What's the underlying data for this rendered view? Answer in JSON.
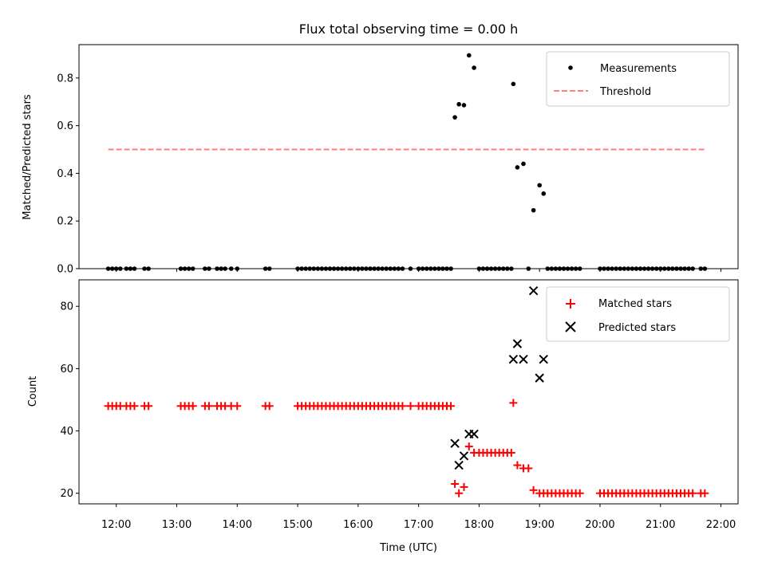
{
  "title": "Flux total observing time = 0.00 h",
  "colors": {
    "measurement": "#000000",
    "threshold": "#ff7f7f",
    "matched": "#ff0000",
    "predicted": "#000000"
  },
  "chart_data": [
    {
      "type": "scatter",
      "ylabel": "Matched/Predicted stars",
      "xlim": [
        "11:23",
        "22:17"
      ],
      "ylim": [
        0,
        0.94
      ],
      "yticks": [
        "0.0",
        "0.2",
        "0.4",
        "0.6",
        "0.8"
      ],
      "legend_position": "top-right",
      "series": [
        {
          "name": "Measurements",
          "marker": "dot",
          "points": [
            [
              "11:52",
              0
            ],
            [
              "11:56",
              0
            ],
            [
              "12:00",
              0
            ],
            [
              "12:04",
              0
            ],
            [
              "12:10",
              0
            ],
            [
              "12:14",
              0
            ],
            [
              "12:18",
              0
            ],
            [
              "12:28",
              0
            ],
            [
              "12:32",
              0
            ],
            [
              "13:04",
              0
            ],
            [
              "13:08",
              0
            ],
            [
              "13:12",
              0
            ],
            [
              "13:16",
              0
            ],
            [
              "13:28",
              0
            ],
            [
              "13:32",
              0
            ],
            [
              "13:40",
              0
            ],
            [
              "13:44",
              0
            ],
            [
              "13:48",
              0
            ],
            [
              "13:54",
              0
            ],
            [
              "14:00",
              0
            ],
            [
              "14:28",
              0
            ],
            [
              "14:32",
              0
            ],
            [
              "15:00",
              0
            ],
            [
              "15:04",
              0
            ],
            [
              "15:08",
              0
            ],
            [
              "15:12",
              0
            ],
            [
              "15:16",
              0
            ],
            [
              "15:20",
              0
            ],
            [
              "15:24",
              0
            ],
            [
              "15:28",
              0
            ],
            [
              "15:32",
              0
            ],
            [
              "15:36",
              0
            ],
            [
              "15:40",
              0
            ],
            [
              "15:44",
              0
            ],
            [
              "15:48",
              0
            ],
            [
              "15:52",
              0
            ],
            [
              "15:56",
              0
            ],
            [
              "16:00",
              0
            ],
            [
              "16:04",
              0
            ],
            [
              "16:08",
              0
            ],
            [
              "16:12",
              0
            ],
            [
              "16:16",
              0
            ],
            [
              "16:20",
              0
            ],
            [
              "16:24",
              0
            ],
            [
              "16:28",
              0
            ],
            [
              "16:32",
              0
            ],
            [
              "16:36",
              0
            ],
            [
              "16:40",
              0
            ],
            [
              "16:44",
              0
            ],
            [
              "16:52",
              0
            ],
            [
              "17:00",
              0
            ],
            [
              "17:04",
              0
            ],
            [
              "17:08",
              0
            ],
            [
              "17:12",
              0
            ],
            [
              "17:16",
              0
            ],
            [
              "17:20",
              0
            ],
            [
              "17:24",
              0
            ],
            [
              "17:28",
              0
            ],
            [
              "17:32",
              0
            ],
            [
              "17:36",
              0.635
            ],
            [
              "17:40",
              0.69
            ],
            [
              "17:45",
              0.686
            ],
            [
              "17:50",
              0.895
            ],
            [
              "17:55",
              0.843
            ],
            [
              "18:00",
              0
            ],
            [
              "18:04",
              0
            ],
            [
              "18:08",
              0
            ],
            [
              "18:12",
              0
            ],
            [
              "18:16",
              0
            ],
            [
              "18:20",
              0
            ],
            [
              "18:24",
              0
            ],
            [
              "18:28",
              0
            ],
            [
              "18:32",
              0
            ],
            [
              "18:34",
              0.775
            ],
            [
              "18:38",
              0.425
            ],
            [
              "18:44",
              0.44
            ],
            [
              "18:49",
              0
            ],
            [
              "18:54",
              0.245
            ],
            [
              "19:00",
              0.35
            ],
            [
              "19:04",
              0.315
            ],
            [
              "19:08",
              0
            ],
            [
              "19:12",
              0
            ],
            [
              "19:16",
              0
            ],
            [
              "19:20",
              0
            ],
            [
              "19:24",
              0
            ],
            [
              "19:28",
              0
            ],
            [
              "19:32",
              0
            ],
            [
              "19:36",
              0
            ],
            [
              "19:40",
              0
            ],
            [
              "20:00",
              0
            ],
            [
              "20:04",
              0
            ],
            [
              "20:08",
              0
            ],
            [
              "20:12",
              0
            ],
            [
              "20:16",
              0
            ],
            [
              "20:20",
              0
            ],
            [
              "20:24",
              0
            ],
            [
              "20:28",
              0
            ],
            [
              "20:32",
              0
            ],
            [
              "20:36",
              0
            ],
            [
              "20:40",
              0
            ],
            [
              "20:44",
              0
            ],
            [
              "20:48",
              0
            ],
            [
              "20:52",
              0
            ],
            [
              "20:56",
              0
            ],
            [
              "21:00",
              0
            ],
            [
              "21:04",
              0
            ],
            [
              "21:08",
              0
            ],
            [
              "21:12",
              0
            ],
            [
              "21:16",
              0
            ],
            [
              "21:20",
              0
            ],
            [
              "21:24",
              0
            ],
            [
              "21:28",
              0
            ],
            [
              "21:32",
              0
            ],
            [
              "21:40",
              0
            ],
            [
              "21:44",
              0
            ]
          ]
        },
        {
          "name": "Threshold",
          "style": "dashed-line",
          "points": [
            [
              "11:52",
              0.5
            ],
            [
              "21:44",
              0.5
            ]
          ]
        }
      ]
    },
    {
      "type": "scatter",
      "xlabel": "Time (UTC)",
      "ylabel": "Count",
      "xlim": [
        "11:23",
        "22:17"
      ],
      "ylim": [
        16.6,
        88.5
      ],
      "yticks": [
        "20",
        "40",
        "60",
        "80"
      ],
      "xticks": [
        "12:00",
        "13:00",
        "14:00",
        "15:00",
        "16:00",
        "17:00",
        "18:00",
        "19:00",
        "20:00",
        "21:00",
        "22:00"
      ],
      "legend_position": "top-right",
      "series": [
        {
          "name": "Matched stars",
          "marker": "plus",
          "points": [
            [
              "11:52",
              48
            ],
            [
              "11:56",
              48
            ],
            [
              "12:00",
              48
            ],
            [
              "12:04",
              48
            ],
            [
              "12:10",
              48
            ],
            [
              "12:14",
              48
            ],
            [
              "12:18",
              48
            ],
            [
              "12:28",
              48
            ],
            [
              "12:32",
              48
            ],
            [
              "13:04",
              48
            ],
            [
              "13:08",
              48
            ],
            [
              "13:12",
              48
            ],
            [
              "13:16",
              48
            ],
            [
              "13:28",
              48
            ],
            [
              "13:32",
              48
            ],
            [
              "13:40",
              48
            ],
            [
              "13:44",
              48
            ],
            [
              "13:48",
              48
            ],
            [
              "13:54",
              48
            ],
            [
              "14:00",
              48
            ],
            [
              "14:28",
              48
            ],
            [
              "14:32",
              48
            ],
            [
              "15:00",
              48
            ],
            [
              "15:04",
              48
            ],
            [
              "15:08",
              48
            ],
            [
              "15:12",
              48
            ],
            [
              "15:16",
              48
            ],
            [
              "15:20",
              48
            ],
            [
              "15:24",
              48
            ],
            [
              "15:28",
              48
            ],
            [
              "15:32",
              48
            ],
            [
              "15:36",
              48
            ],
            [
              "15:40",
              48
            ],
            [
              "15:44",
              48
            ],
            [
              "15:48",
              48
            ],
            [
              "15:52",
              48
            ],
            [
              "15:56",
              48
            ],
            [
              "16:00",
              48
            ],
            [
              "16:04",
              48
            ],
            [
              "16:08",
              48
            ],
            [
              "16:12",
              48
            ],
            [
              "16:16",
              48
            ],
            [
              "16:20",
              48
            ],
            [
              "16:24",
              48
            ],
            [
              "16:28",
              48
            ],
            [
              "16:32",
              48
            ],
            [
              "16:36",
              48
            ],
            [
              "16:40",
              48
            ],
            [
              "16:44",
              48
            ],
            [
              "16:52",
              48
            ],
            [
              "17:00",
              48
            ],
            [
              "17:04",
              48
            ],
            [
              "17:08",
              48
            ],
            [
              "17:12",
              48
            ],
            [
              "17:16",
              48
            ],
            [
              "17:20",
              48
            ],
            [
              "17:24",
              48
            ],
            [
              "17:28",
              48
            ],
            [
              "17:32",
              48
            ],
            [
              "17:36",
              23
            ],
            [
              "17:40",
              20
            ],
            [
              "17:45",
              22
            ],
            [
              "17:50",
              35
            ],
            [
              "17:55",
              33
            ],
            [
              "18:00",
              33
            ],
            [
              "18:04",
              33
            ],
            [
              "18:08",
              33
            ],
            [
              "18:12",
              33
            ],
            [
              "18:16",
              33
            ],
            [
              "18:20",
              33
            ],
            [
              "18:24",
              33
            ],
            [
              "18:28",
              33
            ],
            [
              "18:32",
              33
            ],
            [
              "18:34",
              49
            ],
            [
              "18:38",
              29
            ],
            [
              "18:44",
              28
            ],
            [
              "18:49",
              28
            ],
            [
              "18:54",
              21
            ],
            [
              "19:00",
              20
            ],
            [
              "19:04",
              20
            ],
            [
              "19:08",
              20
            ],
            [
              "19:12",
              20
            ],
            [
              "19:16",
              20
            ],
            [
              "19:20",
              20
            ],
            [
              "19:24",
              20
            ],
            [
              "19:28",
              20
            ],
            [
              "19:32",
              20
            ],
            [
              "19:36",
              20
            ],
            [
              "19:40",
              20
            ],
            [
              "20:00",
              20
            ],
            [
              "20:04",
              20
            ],
            [
              "20:08",
              20
            ],
            [
              "20:12",
              20
            ],
            [
              "20:16",
              20
            ],
            [
              "20:20",
              20
            ],
            [
              "20:24",
              20
            ],
            [
              "20:28",
              20
            ],
            [
              "20:32",
              20
            ],
            [
              "20:36",
              20
            ],
            [
              "20:40",
              20
            ],
            [
              "20:44",
              20
            ],
            [
              "20:48",
              20
            ],
            [
              "20:52",
              20
            ],
            [
              "20:56",
              20
            ],
            [
              "21:00",
              20
            ],
            [
              "21:04",
              20
            ],
            [
              "21:08",
              20
            ],
            [
              "21:12",
              20
            ],
            [
              "21:16",
              20
            ],
            [
              "21:20",
              20
            ],
            [
              "21:24",
              20
            ],
            [
              "21:28",
              20
            ],
            [
              "21:32",
              20
            ],
            [
              "21:40",
              20
            ],
            [
              "21:44",
              20
            ]
          ]
        },
        {
          "name": "Predicted stars",
          "marker": "x",
          "points": [
            [
              "17:36",
              36
            ],
            [
              "17:40",
              29
            ],
            [
              "17:45",
              32
            ],
            [
              "17:50",
              39
            ],
            [
              "17:55",
              39
            ],
            [
              "18:34",
              63
            ],
            [
              "18:38",
              68
            ],
            [
              "18:44",
              63
            ],
            [
              "18:54",
              85
            ],
            [
              "19:00",
              57
            ],
            [
              "19:04",
              63
            ]
          ]
        }
      ]
    }
  ]
}
